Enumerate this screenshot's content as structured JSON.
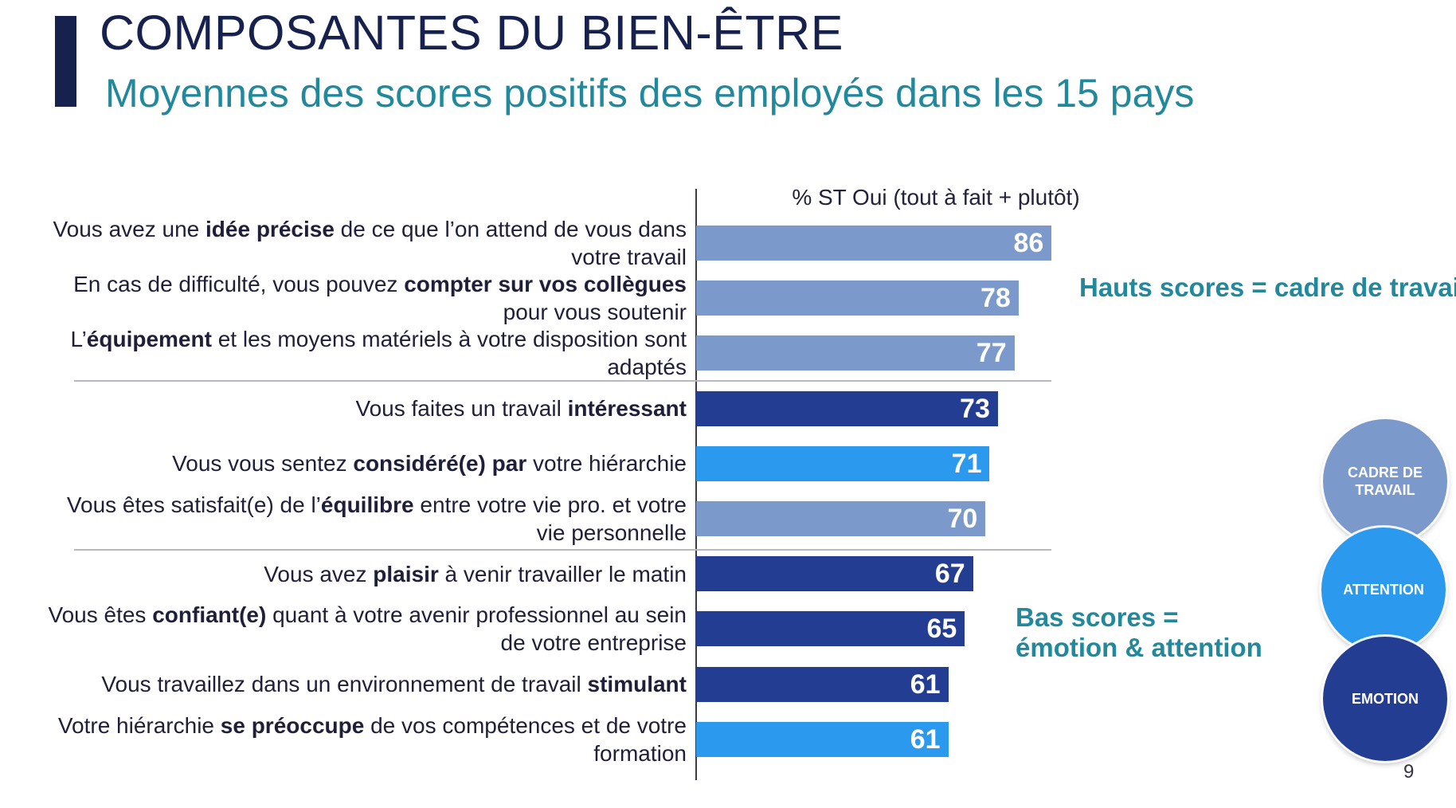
{
  "header": {
    "title": "COMPOSANTES DU BIEN-ÊTRE",
    "subtitle": "Moyennes des scores positifs des employés dans les 15 pays"
  },
  "colors": {
    "navy": "#16214d",
    "teal": "#22889c",
    "cadre": "#7b9acb",
    "attention": "#2b99ed",
    "emotion": "#233d93"
  },
  "chart_data": {
    "type": "bar",
    "orientation": "horizontal",
    "axis_title": "% ST Oui (tout à fait + plutôt)",
    "xlim": [
      0,
      100
    ],
    "rows": [
      {
        "parts": [
          [
            "Vous avez une ",
            false
          ],
          [
            "idée précise",
            true
          ],
          [
            " de ce que l’on attend de vous dans votre travail",
            false
          ]
        ],
        "value": 86,
        "group": "cadre"
      },
      {
        "parts": [
          [
            "En cas de difficulté, vous pouvez ",
            false
          ],
          [
            "compter sur vos collègues",
            true
          ],
          [
            " pour vous soutenir",
            false
          ]
        ],
        "value": 78,
        "group": "cadre"
      },
      {
        "parts": [
          [
            "L’",
            false
          ],
          [
            "équipement",
            true
          ],
          [
            " et les moyens matériels à votre disposition sont adaptés",
            false
          ]
        ],
        "value": 77,
        "group": "cadre"
      },
      {
        "parts": [
          [
            "Vous faites un travail ",
            false
          ],
          [
            "intéressant",
            true
          ]
        ],
        "value": 73,
        "group": "emotion"
      },
      {
        "parts": [
          [
            "Vous vous sentez ",
            false
          ],
          [
            "considéré(e) par",
            true
          ],
          [
            " votre hiérarchie",
            false
          ]
        ],
        "value": 71,
        "group": "attention"
      },
      {
        "parts": [
          [
            "Vous êtes satisfait(e) de l’",
            false
          ],
          [
            "équilibre",
            true
          ],
          [
            " entre votre vie pro. et votre vie personnelle",
            false
          ]
        ],
        "value": 70,
        "group": "cadre"
      },
      {
        "parts": [
          [
            "Vous avez ",
            false
          ],
          [
            "plaisir",
            true
          ],
          [
            " à venir travailler le matin",
            false
          ]
        ],
        "value": 67,
        "group": "emotion"
      },
      {
        "parts": [
          [
            "Vous êtes ",
            false
          ],
          [
            "confiant(e)",
            true
          ],
          [
            " quant à votre avenir professionnel au sein de votre entreprise",
            false
          ]
        ],
        "value": 65,
        "group": "emotion"
      },
      {
        "parts": [
          [
            "Vous travaillez dans un environnement de travail ",
            false
          ],
          [
            "stimulant",
            true
          ]
        ],
        "value": 61,
        "group": "emotion"
      },
      {
        "parts": [
          [
            "Votre hiérarchie ",
            false
          ],
          [
            "se préoccupe",
            true
          ],
          [
            " de vos compétences et de votre formation",
            false
          ]
        ],
        "value": 61,
        "group": "attention"
      }
    ]
  },
  "annotations": {
    "high": "Hauts scores = cadre de travail",
    "low_line1": "Bas scores =",
    "low_line2": "émotion & attention"
  },
  "legend": {
    "cadre": "CADRE DE TRAVAIL",
    "attention": "ATTENTION",
    "emotion": "EMOTION"
  },
  "page_number": "9"
}
